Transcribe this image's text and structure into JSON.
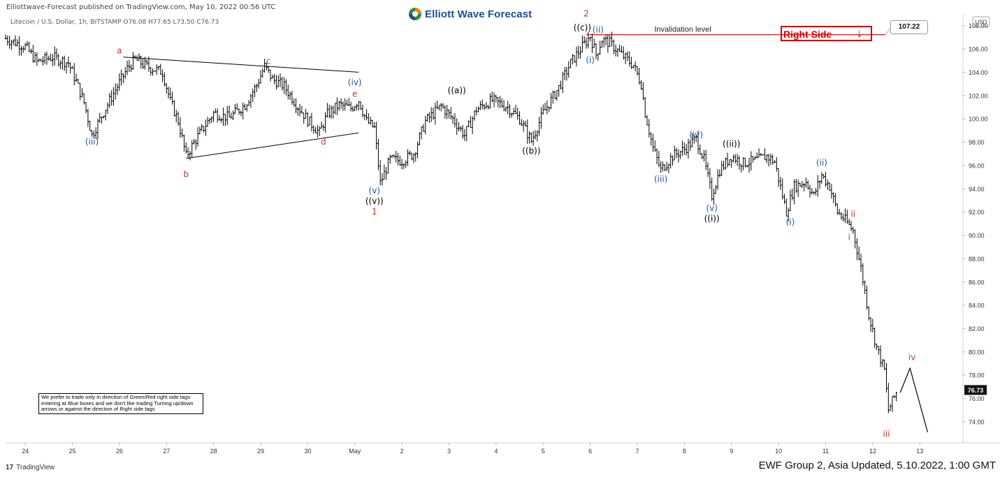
{
  "header": {
    "published": "Elliottwave-Forecast published on TradingView.com, May 10, 2022 00:56 UTC",
    "symbol": "Litecoin / U.S. Dollar, 1h, BITSTAMP O76.08 H77.65 L73.50 C76.73"
  },
  "brand": {
    "name": "Elliott Wave Forecast",
    "icon": "ewf-logo-icon"
  },
  "note": "We prefer to trade only in direction of Green/Red right side tags entering at Blue boxes and we don't like trading Turning up/down arrows or against the direction of Right side tags",
  "tradingview": {
    "label": "TradingView",
    "icon": "tradingview-logo-icon"
  },
  "footer": "EWF Group 2, Asia Updated, 5.10.2022, 1:00 GMT",
  "right_side": {
    "label": "Right Side",
    "arrow": "↓",
    "color": "#d00000"
  },
  "invalidation": {
    "label": "Invalidation level",
    "price_label": "107.22",
    "value": 107.22
  },
  "chart_data": {
    "type": "candlestick",
    "title": "Litecoin / U.S. Dollar, 1h, BITSTAMP",
    "ohlc_last": {
      "open": 76.08,
      "high": 77.65,
      "low": 73.5,
      "close": 76.73
    },
    "currency": "USD",
    "current_price": 76.73,
    "ylim": [
      72.2,
      109.0
    ],
    "xlim": [
      "2022-04-23T14:00",
      "2022-05-13T22:00"
    ],
    "y_ticks": [
      74.0,
      76.0,
      78.0,
      80.0,
      82.0,
      84.0,
      86.0,
      88.0,
      90.0,
      92.0,
      94.0,
      96.0,
      98.0,
      100.0,
      102.0,
      104.0,
      106.0,
      108.0
    ],
    "x_ticks": [
      {
        "label": "24",
        "date": "2022-04-24"
      },
      {
        "label": "25",
        "date": "2022-04-25"
      },
      {
        "label": "26",
        "date": "2022-04-26"
      },
      {
        "label": "27",
        "date": "2022-04-27"
      },
      {
        "label": "28",
        "date": "2022-04-28"
      },
      {
        "label": "29",
        "date": "2022-04-29"
      },
      {
        "label": "30",
        "date": "2022-04-30"
      },
      {
        "label": "May",
        "date": "2022-05-01"
      },
      {
        "label": "2",
        "date": "2022-05-02"
      },
      {
        "label": "3",
        "date": "2022-05-03"
      },
      {
        "label": "4",
        "date": "2022-05-04"
      },
      {
        "label": "5",
        "date": "2022-05-05"
      },
      {
        "label": "6",
        "date": "2022-05-06"
      },
      {
        "label": "7",
        "date": "2022-05-07"
      },
      {
        "label": "8",
        "date": "2022-05-08"
      },
      {
        "label": "9",
        "date": "2022-05-09"
      },
      {
        "label": "10",
        "date": "2022-05-10"
      },
      {
        "label": "11",
        "date": "2022-05-11"
      },
      {
        "label": "12",
        "date": "2022-05-12"
      },
      {
        "label": "13",
        "date": "2022-05-13"
      }
    ],
    "price_path": [
      [
        "2022-04-23T14:00",
        106.9
      ],
      [
        "2022-04-24T00:00",
        106.2
      ],
      [
        "2022-04-24T06:00",
        104.9
      ],
      [
        "2022-04-24T14:00",
        105.3
      ],
      [
        "2022-04-24T22:00",
        104.8
      ],
      [
        "2022-04-25T02:00",
        103.2
      ],
      [
        "2022-04-25T06:00",
        101.4
      ],
      [
        "2022-04-25T10:00",
        98.6
      ],
      [
        "2022-04-25T16:00",
        100.6
      ],
      [
        "2022-04-25T22:00",
        102.5
      ],
      [
        "2022-04-26T04:00",
        104.3
      ],
      [
        "2022-04-26T08:00",
        105.1
      ],
      [
        "2022-04-26T14:00",
        104.5
      ],
      [
        "2022-04-26T22:00",
        104.0
      ],
      [
        "2022-04-27T02:00",
        101.5
      ],
      [
        "2022-04-27T06:00",
        99.8
      ],
      [
        "2022-04-27T10:00",
        96.8
      ],
      [
        "2022-04-27T16:00",
        98.5
      ],
      [
        "2022-04-28T00:00",
        100.5
      ],
      [
        "2022-04-28T08:00",
        100.1
      ],
      [
        "2022-04-28T16:00",
        101.2
      ],
      [
        "2022-04-28T22:00",
        102.9
      ],
      [
        "2022-04-29T02:00",
        104.5
      ],
      [
        "2022-04-29T06:00",
        103.4
      ],
      [
        "2022-04-29T12:00",
        102.8
      ],
      [
        "2022-04-29T18:00",
        101.3
      ],
      [
        "2022-04-30T00:00",
        99.9
      ],
      [
        "2022-04-30T06:00",
        98.8
      ],
      [
        "2022-04-30T10:00",
        100.4
      ],
      [
        "2022-04-30T16:00",
        101.2
      ],
      [
        "2022-04-30T22:00",
        100.9
      ],
      [
        "2022-05-01T02:00",
        101.6
      ],
      [
        "2022-05-01T06:00",
        99.8
      ],
      [
        "2022-05-01T10:00",
        99.2
      ],
      [
        "2022-05-01T13:00",
        94.5
      ],
      [
        "2022-05-01T18:00",
        96.5
      ],
      [
        "2022-05-02T00:00",
        96.4
      ],
      [
        "2022-05-02T06:00",
        97.0
      ],
      [
        "2022-05-02T12:00",
        99.8
      ],
      [
        "2022-05-02T20:00",
        101.1
      ],
      [
        "2022-05-03T02:00",
        100.0
      ],
      [
        "2022-05-03T08:00",
        98.6
      ],
      [
        "2022-05-03T14:00",
        100.8
      ],
      [
        "2022-05-03T22:00",
        101.6
      ],
      [
        "2022-05-04T06:00",
        101.0
      ],
      [
        "2022-05-04T12:00",
        100.0
      ],
      [
        "2022-05-04T18:00",
        98.1
      ],
      [
        "2022-05-05T00:00",
        100.5
      ],
      [
        "2022-05-05T08:00",
        102.7
      ],
      [
        "2022-05-05T14:00",
        104.8
      ],
      [
        "2022-05-05T20:00",
        106.2
      ],
      [
        "2022-05-06T00:00",
        107.1
      ],
      [
        "2022-05-06T03:00",
        105.5
      ],
      [
        "2022-05-06T06:00",
        106.8
      ],
      [
        "2022-05-06T10:00",
        106.5
      ],
      [
        "2022-05-06T16:00",
        105.5
      ],
      [
        "2022-05-06T22:00",
        104.6
      ],
      [
        "2022-05-07T02:00",
        103.0
      ],
      [
        "2022-05-07T04:00",
        100.5
      ],
      [
        "2022-05-07T08:00",
        97.5
      ],
      [
        "2022-05-07T12:00",
        95.6
      ],
      [
        "2022-05-07T18:00",
        96.8
      ],
      [
        "2022-05-08T00:00",
        97.4
      ],
      [
        "2022-05-08T06:00",
        98.3
      ],
      [
        "2022-05-08T10:00",
        96.5
      ],
      [
        "2022-05-08T14:00",
        93.4
      ],
      [
        "2022-05-08T18:00",
        95.6
      ],
      [
        "2022-05-09T00:00",
        96.8
      ],
      [
        "2022-05-09T06:00",
        96.2
      ],
      [
        "2022-05-09T12:00",
        96.4
      ],
      [
        "2022-05-09T18:00",
        96.8
      ],
      [
        "2022-05-09T22:00",
        96.3
      ],
      [
        "2022-05-10T04:00",
        92.0
      ],
      [
        "2022-05-10T08:00",
        94.2
      ],
      [
        "2022-05-10T14:00",
        94.6
      ],
      [
        "2022-05-10T18:00",
        93.4
      ],
      [
        "2022-05-10T22:00",
        95.2
      ],
      [
        "2022-05-11T02:00",
        94.2
      ],
      [
        "2022-05-11T06:00",
        92.0
      ],
      [
        "2022-05-11T10:00",
        91.3
      ],
      [
        "2022-05-11T14:00",
        90.4
      ],
      [
        "2022-05-11T18:00",
        87.2
      ],
      [
        "2022-05-11T22:00",
        83.2
      ],
      [
        "2022-05-12T02:00",
        80.4
      ],
      [
        "2022-05-12T06:00",
        78.4
      ],
      [
        "2022-05-12T08:00",
        75.0
      ],
      [
        "2022-05-12T12:00",
        76.5
      ]
    ],
    "projection": [
      [
        "2022-05-12T14:00",
        76.5
      ],
      [
        "2022-05-12T19:00",
        78.6
      ],
      [
        "2022-05-13T04:00",
        73.1
      ]
    ],
    "trendlines": [
      {
        "name": "triangle-upper-line",
        "points": [
          [
            "2022-04-26T02:00",
            105.3
          ],
          [
            "2022-05-01T02:00",
            104.0
          ]
        ]
      },
      {
        "name": "triangle-lower-line",
        "points": [
          [
            "2022-04-27T10:00",
            96.6
          ],
          [
            "2022-05-01T02:00",
            98.8
          ]
        ]
      }
    ],
    "annotations": [
      {
        "text": "a",
        "date": "2022-04-26T00:00",
        "price": 105.6,
        "color": "#c0392b"
      },
      {
        "text": "b",
        "date": "2022-04-27T10:00",
        "price": 95.0,
        "color": "#c0392b"
      },
      {
        "text": "c",
        "date": "2022-04-29T04:00",
        "price": 104.7,
        "color": "#c0392b"
      },
      {
        "text": "d",
        "date": "2022-04-30T08:00",
        "price": 97.8,
        "color": "#c0392b"
      },
      {
        "text": "e",
        "date": "2022-05-01T00:00",
        "price": 101.9,
        "color": "#c0392b"
      },
      {
        "text": "(iv)",
        "date": "2022-05-01T00:00",
        "price": 102.9,
        "color": "#2255aa"
      },
      {
        "text": "(iii)",
        "date": "2022-04-25T10:00",
        "price": 97.8,
        "color": "#2255aa"
      },
      {
        "text": "(v)",
        "date": "2022-05-01T10:00",
        "price": 93.6,
        "color": "#2255aa"
      },
      {
        "text": "((v))",
        "date": "2022-05-01T10:00",
        "price": 92.7,
        "color": "#000000"
      },
      {
        "text": "1",
        "date": "2022-05-01T10:00",
        "price": 91.8,
        "color": "#c0392b"
      },
      {
        "text": "((a))",
        "date": "2022-05-03T04:00",
        "price": 102.2,
        "color": "#000000"
      },
      {
        "text": "((b))",
        "date": "2022-05-04T18:00",
        "price": 97.0,
        "color": "#000000"
      },
      {
        "text": "2",
        "date": "2022-05-05T22:00",
        "price": 108.8,
        "color": "#c0392b"
      },
      {
        "text": "((c))",
        "date": "2022-05-05T20:00",
        "price": 107.6,
        "color": "#000000"
      },
      {
        "text": "(ii)",
        "date": "2022-05-06T04:00",
        "price": 107.4,
        "color": "#2255aa"
      },
      {
        "text": "(i)",
        "date": "2022-05-06T00:00",
        "price": 104.8,
        "color": "#2255aa"
      },
      {
        "text": "(iii)",
        "date": "2022-05-07T12:00",
        "price": 94.6,
        "color": "#2255aa"
      },
      {
        "text": "(iv)",
        "date": "2022-05-08T06:00",
        "price": 98.4,
        "color": "#2255aa"
      },
      {
        "text": "((ii))",
        "date": "2022-05-09T00:00",
        "price": 97.6,
        "color": "#000000"
      },
      {
        "text": "(v)",
        "date": "2022-05-08T14:00",
        "price": 92.1,
        "color": "#2255aa"
      },
      {
        "text": "((i))",
        "date": "2022-05-08T14:00",
        "price": 91.2,
        "color": "#000000"
      },
      {
        "text": "(ii)",
        "date": "2022-05-10T22:00",
        "price": 96.0,
        "color": "#2255aa"
      },
      {
        "text": "(i)",
        "date": "2022-05-10T06:00",
        "price": 90.9,
        "color": "#2255aa"
      },
      {
        "text": "ii",
        "date": "2022-05-11T14:00",
        "price": 91.6,
        "color": "#c0392b"
      },
      {
        "text": "i",
        "date": "2022-05-11T12:00",
        "price": 89.6,
        "color": "#c0392b"
      },
      {
        "text": "iv",
        "date": "2022-05-12T20:00",
        "price": 79.3,
        "color": "#c0392b"
      },
      {
        "text": "iii",
        "date": "2022-05-12T07:00",
        "price": 72.7,
        "color": "#c0392b"
      }
    ]
  }
}
